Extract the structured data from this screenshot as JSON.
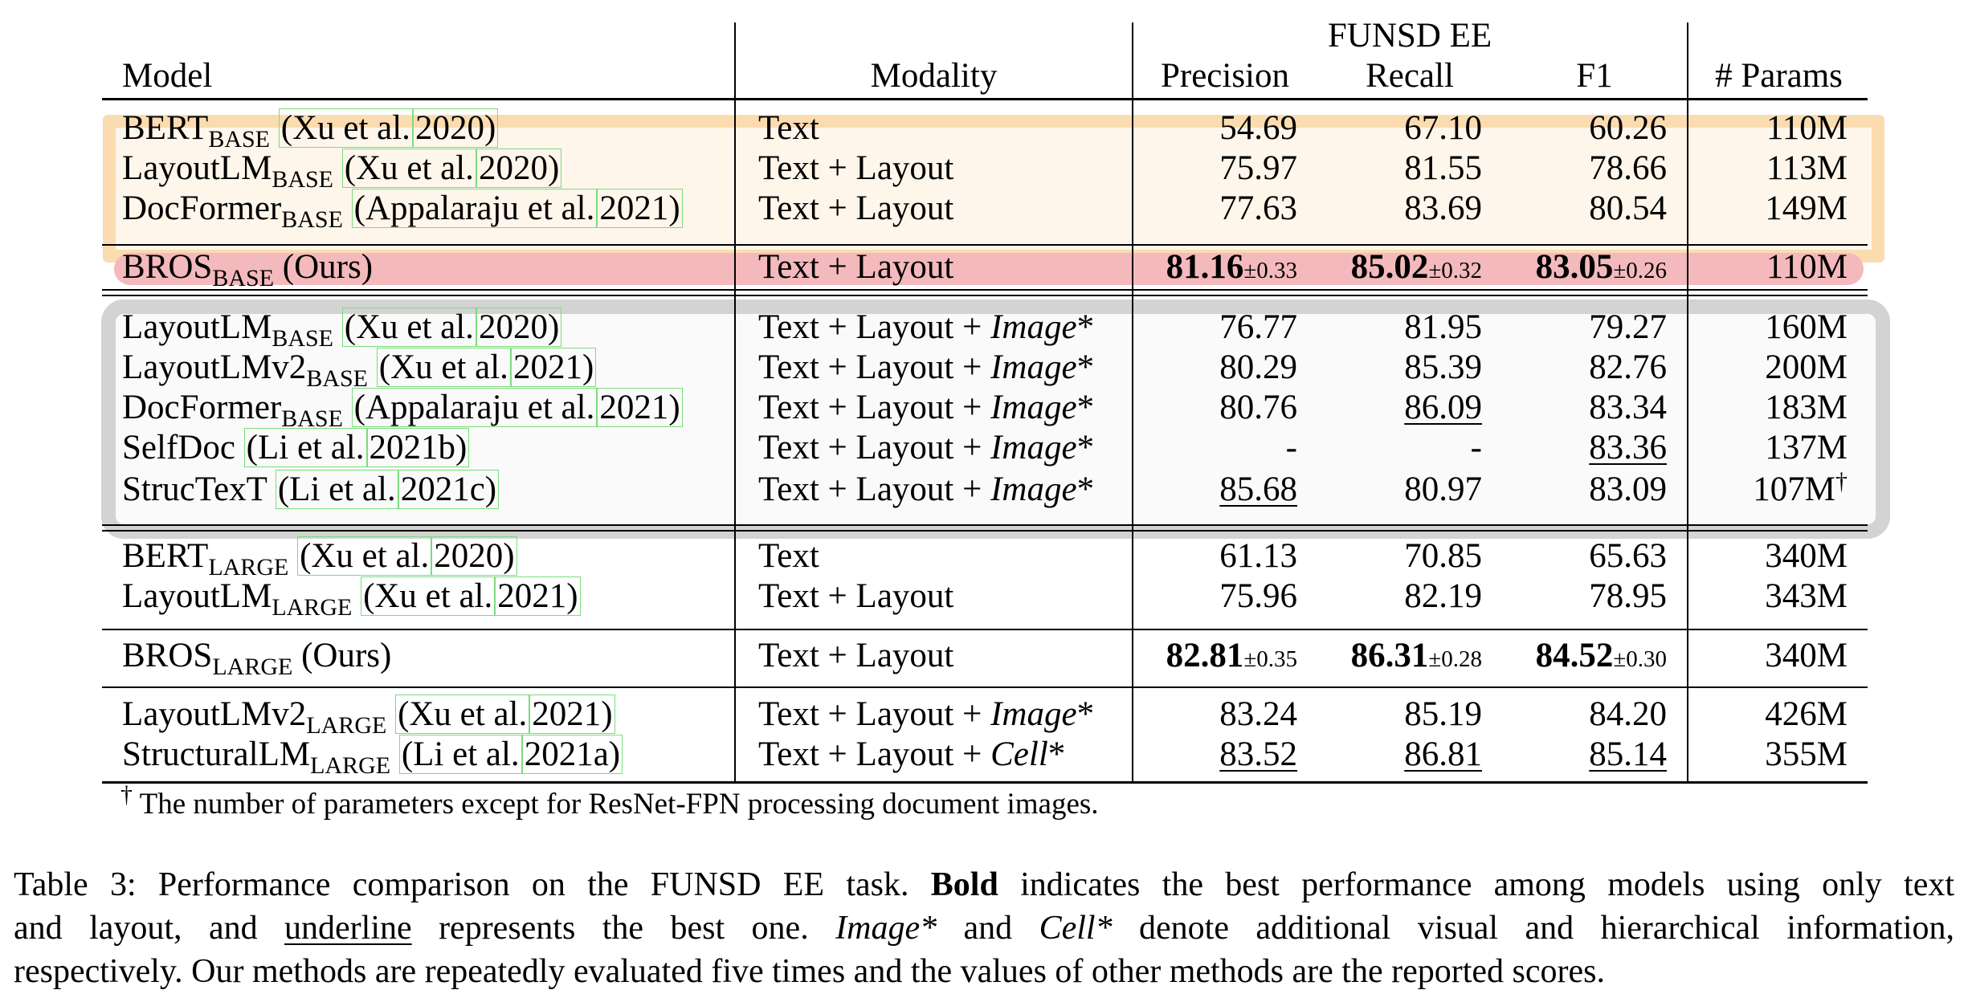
{
  "header": {
    "model": "Model",
    "modality": "Modality",
    "group": "FUNSD EE",
    "precision": "Precision",
    "recall": "Recall",
    "f1": "F1",
    "params": "# Params"
  },
  "rows": [
    {
      "name": "BERT",
      "sub": "BASE",
      "ref_a": "(Xu et al.",
      "ref_b": "2020)",
      "modality": "Text",
      "modality_it": "",
      "p": "54.69",
      "r": "67.10",
      "f": "60.26",
      "params": "110M"
    },
    {
      "name": "LayoutLM",
      "sub": "BASE",
      "ref_a": "(Xu et al.",
      "ref_b": "2020)",
      "modality": "Text + Layout",
      "modality_it": "",
      "p": "75.97",
      "r": "81.55",
      "f": "78.66",
      "params": "113M"
    },
    {
      "name": "DocFormer",
      "sub": "BASE",
      "ref_a": "(Appalaraju et al.",
      "ref_b": "2021)",
      "modality": "Text + Layout",
      "modality_it": "",
      "p": "77.63",
      "r": "83.69",
      "f": "80.54",
      "params": "149M"
    },
    {
      "name": "BROS",
      "sub": "BASE",
      "suffix": "(Ours)",
      "modality": "Text + Layout",
      "modality_it": "",
      "p": "81.16",
      "p_pm": "±0.33",
      "r": "85.02",
      "r_pm": "±0.32",
      "f": "83.05",
      "f_pm": "±0.26",
      "params": "110M"
    },
    {
      "name": "LayoutLM",
      "sub": "BASE",
      "ref_a": "(Xu et al.",
      "ref_b": "2020)",
      "modality": "Text + Layout + ",
      "modality_it": "Image",
      "modality_star": "*",
      "p": "76.77",
      "r": "81.95",
      "f": "79.27",
      "params": "160M"
    },
    {
      "name": "LayoutLMv2",
      "sub": "BASE",
      "ref_a": "(Xu et al.",
      "ref_b": "2021)",
      "modality": "Text + Layout + ",
      "modality_it": "Image",
      "modality_star": "*",
      "p": "80.29",
      "r": "85.39",
      "f": "82.76",
      "params": "200M"
    },
    {
      "name": "DocFormer",
      "sub": "BASE",
      "ref_a": "(Appalaraju et al.",
      "ref_b": "2021)",
      "modality": "Text + Layout + ",
      "modality_it": "Image",
      "modality_star": "*",
      "p": "80.76",
      "r": "86.09",
      "f": "83.34",
      "params": "183M"
    },
    {
      "name": "SelfDoc",
      "sub": "",
      "ref_a": "(Li et al.",
      "ref_b": "2021b)",
      "modality": "Text + Layout + ",
      "modality_it": "Image",
      "modality_star": "*",
      "p": "-",
      "r": "-",
      "f": "83.36",
      "params": "137M"
    },
    {
      "name": "StrucTexT",
      "sub": "",
      "ref_a": "(Li et al.",
      "ref_b": "2021c)",
      "modality": "Text + Layout + ",
      "modality_it": "Image",
      "modality_star": "*",
      "p": "85.68",
      "r": "80.97",
      "f": "83.09",
      "params": "107M",
      "params_sup": "†"
    },
    {
      "name": "BERT",
      "sub": "LARGE",
      "ref_a": "(Xu et al.",
      "ref_b": "2020)",
      "modality": "Text",
      "modality_it": "",
      "p": "61.13",
      "r": "70.85",
      "f": "65.63",
      "params": "340M"
    },
    {
      "name": "LayoutLM",
      "sub": "LARGE",
      "ref_a": "(Xu et al.",
      "ref_b": "2021)",
      "modality": "Text + Layout",
      "modality_it": "",
      "p": "75.96",
      "r": "82.19",
      "f": "78.95",
      "params": "343M"
    },
    {
      "name": "BROS",
      "sub": "LARGE",
      "suffix": "(Ours)",
      "modality": "Text + Layout",
      "modality_it": "",
      "p": "82.81",
      "p_pm": "±0.35",
      "r": "86.31",
      "r_pm": "±0.28",
      "f": "84.52",
      "f_pm": "±0.30",
      "params": "340M"
    },
    {
      "name": "LayoutLMv2",
      "sub": "LARGE",
      "ref_a": "(Xu et al.",
      "ref_b": "2021)",
      "modality": "Text + Layout + ",
      "modality_it": "Image",
      "modality_star": "*",
      "p": "83.24",
      "r": "85.19",
      "f": "84.20",
      "params": "426M"
    },
    {
      "name": "StructuralLM",
      "sub": "LARGE",
      "ref_a": "(Li et al.",
      "ref_b": "2021a)",
      "modality": "Text + Layout + ",
      "modality_it": "Cell",
      "modality_star": "*",
      "p": "83.52",
      "r": "86.81",
      "f": "85.14",
      "params": "355M"
    }
  ],
  "footnote": {
    "mark": "†",
    "text": "The number of parameters except for ResNet-FPN processing document images."
  },
  "caption": {
    "a": "Table 3: Performance comparison on the FUNSD EE task. ",
    "bold": "Bold",
    "b": " indicates the best performance among models using only text",
    "c": "and layout, and ",
    "underline": "underline",
    "d": " represents the best one. ",
    "image_it": "Image*",
    "e": " and ",
    "cell_it": "Cell*",
    "f": " denote additional visual and hierarchical information,",
    "g": "respectively. Our methods are repeatedly evaluated five times and the values of other methods are the reported scores."
  },
  "colors": {
    "base_group": "#fbdcb0",
    "bros_row": "#f4b9bc",
    "image_group": "#d3d3d3",
    "ref_box": "#7bdc7b"
  }
}
